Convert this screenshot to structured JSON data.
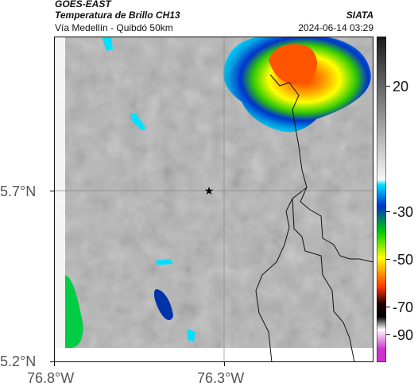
{
  "header": {
    "satellite": "GOES-EAST",
    "product": "Temperatura de Brillo CH13",
    "org": "SIATA",
    "location": "Vía Medellín - Quibdó 50km",
    "timestamp": "2024-06-14 03:29"
  },
  "map": {
    "x_ticks": [
      "76.8°W",
      "76.3°W"
    ],
    "y_ticks": [
      "5.7°N",
      "5.2°N"
    ],
    "marker_icon": "star-icon",
    "gridlines": true
  },
  "colorbar": {
    "ticks": [
      "20",
      "-30",
      "-50",
      "-70",
      "-90"
    ],
    "colors": [
      "#1a1a1a",
      "#ffffff",
      "#00e0ff",
      "#0033cc",
      "#00cc00",
      "#ffff00",
      "#ff3300",
      "#000000",
      "#cc33cc"
    ]
  }
}
